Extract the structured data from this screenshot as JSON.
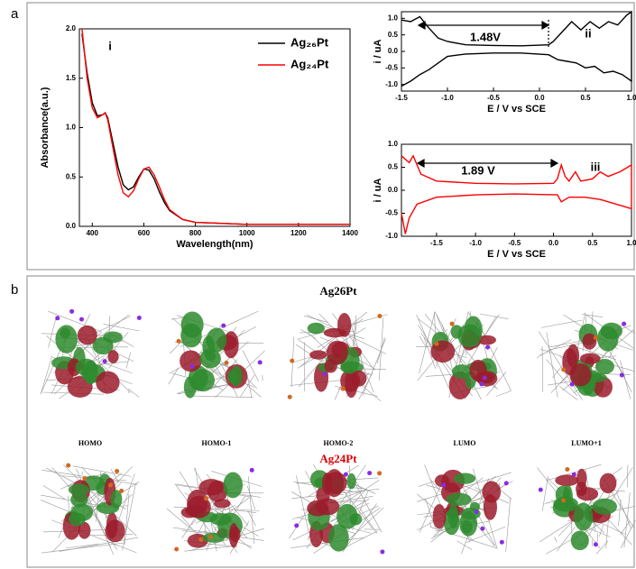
{
  "panel_labels": [
    "a",
    "b"
  ],
  "chart_data": [
    {
      "type": "line",
      "xlabel": "Wavelength(nm)",
      "ylabel": "Absorbance(a.u.)",
      "annotations": [
        "i"
      ],
      "x": [
        360,
        380,
        400,
        420,
        440,
        450,
        460,
        480,
        500,
        520,
        540,
        560,
        580,
        600,
        620,
        640,
        660,
        680,
        700,
        750,
        800,
        900,
        1000,
        1200,
        1400
      ],
      "series": [
        {
          "name": "Ag₂₆Pt",
          "color": "#000000",
          "values": [
            1.95,
            1.55,
            1.25,
            1.12,
            1.13,
            1.15,
            1.1,
            0.85,
            0.6,
            0.42,
            0.37,
            0.4,
            0.5,
            0.58,
            0.57,
            0.48,
            0.35,
            0.24,
            0.16,
            0.07,
            0.04,
            0.03,
            0.02,
            0.02,
            0.02
          ]
        },
        {
          "name": "Ag₂₄Pt",
          "color": "#ff0000",
          "values": [
            2.0,
            1.5,
            1.2,
            1.1,
            1.13,
            1.15,
            1.08,
            0.8,
            0.52,
            0.34,
            0.3,
            0.36,
            0.48,
            0.58,
            0.6,
            0.52,
            0.4,
            0.27,
            0.17,
            0.07,
            0.04,
            0.03,
            0.02,
            0.02,
            0.02
          ]
        }
      ],
      "xlim": [
        350,
        1400
      ],
      "xticks": [
        400,
        600,
        800,
        1000,
        1200,
        1400
      ],
      "ylim": [
        0,
        2
      ],
      "yticks": [
        {
          "value": 0,
          "label": "0.0"
        },
        0.5,
        {
          "value": 1,
          "label": "1.0"
        },
        1.5,
        {
          "value": 2,
          "label": "2.0"
        }
      ],
      "legend": "upper right"
    },
    {
      "type": "line",
      "xlabel": "E / V vs SCE",
      "ylabel": "i / uA",
      "annotations": [
        "1.48V",
        "ii"
      ],
      "color": "#000000",
      "x": [
        -1.5,
        -1.4,
        -1.3,
        -1.2,
        -1.1,
        -1.0,
        -0.8,
        -0.5,
        -0.2,
        0.1,
        0.15,
        0.25,
        0.35,
        0.45,
        0.55,
        0.65,
        0.75,
        0.85,
        0.95,
        1.0,
        1.0,
        0.9,
        0.8,
        0.7,
        0.6,
        0.5,
        0.4,
        0.3,
        0.2,
        0.1,
        -0.2,
        -0.5,
        -0.8,
        -1.0,
        -1.1,
        -1.2,
        -1.3,
        -1.4,
        -1.5
      ],
      "values": [
        0.95,
        0.9,
        1.05,
        0.7,
        0.4,
        0.3,
        0.2,
        0.18,
        0.17,
        0.2,
        0.3,
        0.6,
        0.9,
        0.65,
        0.9,
        0.7,
        0.9,
        0.8,
        1.1,
        1.2,
        -0.9,
        -0.7,
        -0.6,
        -0.65,
        -0.45,
        -0.5,
        -0.35,
        -0.3,
        -0.25,
        -0.1,
        -0.05,
        -0.05,
        -0.08,
        -0.15,
        -0.35,
        -0.55,
        -0.7,
        -0.9,
        -1.05
      ],
      "xlim": [
        -1.5,
        1.0
      ],
      "xticks": [
        -1.5,
        {
          "value": -1,
          "label": "-1.0"
        },
        -0.5,
        {
          "value": 0,
          "label": "0.0"
        },
        0.5,
        {
          "value": 1,
          "label": "1.0"
        }
      ],
      "ylim": [
        -1.2,
        1.2
      ],
      "yticks": [
        {
          "value": -1,
          "label": "-1.0"
        },
        -0.5,
        {
          "value": 0,
          "label": "0.0"
        },
        0.5,
        {
          "value": 1,
          "label": "1.0"
        }
      ]
    },
    {
      "type": "line",
      "xlabel": "E / V vs SCE",
      "ylabel": "i / uA",
      "annotations": [
        "1.89 V",
        "iii"
      ],
      "color": "#ff0000",
      "x": [
        -1.95,
        -1.85,
        -1.8,
        -1.7,
        -1.5,
        -1.0,
        -0.5,
        0.0,
        0.05,
        0.1,
        0.15,
        0.2,
        0.28,
        0.35,
        0.5,
        0.6,
        0.7,
        0.85,
        1.0,
        1.0,
        0.8,
        0.6,
        0.4,
        0.2,
        0.1,
        0.05,
        -0.5,
        -1.0,
        -1.5,
        -1.75,
        -1.85,
        -1.9,
        -1.95
      ],
      "values": [
        0.75,
        0.6,
        0.75,
        0.35,
        0.2,
        0.15,
        0.14,
        0.15,
        0.25,
        0.55,
        0.3,
        0.2,
        0.4,
        0.2,
        0.25,
        0.4,
        0.3,
        0.4,
        0.55,
        -0.4,
        -0.3,
        -0.2,
        -0.15,
        -0.15,
        -0.25,
        -0.1,
        -0.08,
        -0.1,
        -0.15,
        -0.3,
        -0.6,
        -0.95,
        -0.5
      ],
      "xlim": [
        -1.95,
        1.0
      ],
      "xticks": [
        -1.5,
        {
          "value": -1,
          "label": "-1.0"
        },
        -0.5,
        {
          "value": 0,
          "label": "0.0"
        },
        0.5,
        {
          "value": 1,
          "label": "1.0"
        }
      ],
      "ylim": [
        -1.0,
        1.0
      ],
      "yticks": [
        {
          "value": -1,
          "label": "-1.0"
        },
        -0.5,
        {
          "value": 0,
          "label": "0.0"
        },
        0.5,
        {
          "value": 1,
          "label": "1.0"
        }
      ]
    }
  ],
  "orbitals": {
    "title_top": "Ag26Pt",
    "title_bottom": "Ag24Pt",
    "labels": [
      "HOMO",
      "HOMO-1",
      "HOMO-2",
      "LUMO",
      "LUMO+1"
    ]
  }
}
